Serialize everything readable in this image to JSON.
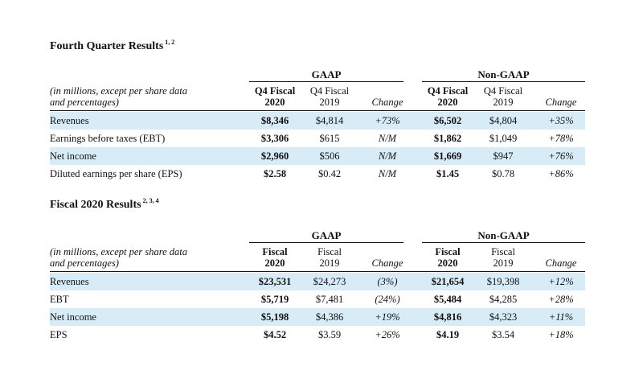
{
  "q4": {
    "title": "Fourth Quarter Results",
    "footnote": "1, 2",
    "gaap_label": "GAAP",
    "nongaap_label": "Non-GAAP",
    "desc_line1": "(in millions, except per share data",
    "desc_line2": "and percentages)",
    "col_current_l1": "Q4 Fiscal",
    "col_current_l2": "2020",
    "col_prior_l1": "Q4 Fiscal",
    "col_prior_l2": "2019",
    "col_change": "Change",
    "rows": [
      {
        "label": "Revenues",
        "gaap_cur": "$8,346",
        "gaap_prior": "$4,814",
        "gaap_chg": "+73%",
        "ng_cur": "$6,502",
        "ng_prior": "$4,804",
        "ng_chg": "+35%"
      },
      {
        "label": "Earnings before taxes (EBT)",
        "gaap_cur": "$3,306",
        "gaap_prior": "$615",
        "gaap_chg": "N/M",
        "ng_cur": "$1,862",
        "ng_prior": "$1,049",
        "ng_chg": "+78%"
      },
      {
        "label": "Net income",
        "gaap_cur": "$2,960",
        "gaap_prior": "$506",
        "gaap_chg": "N/M",
        "ng_cur": "$1,669",
        "ng_prior": "$947",
        "ng_chg": "+76%"
      },
      {
        "label": "Diluted earnings per share (EPS)",
        "gaap_cur": "$2.58",
        "gaap_prior": "$0.42",
        "gaap_chg": "N/M",
        "ng_cur": "$1.45",
        "ng_prior": "$0.78",
        "ng_chg": "+86%"
      }
    ]
  },
  "fy": {
    "title": "Fiscal 2020 Results",
    "footnote": "2, 3, 4",
    "gaap_label": "GAAP",
    "nongaap_label": "Non-GAAP",
    "desc_line1": "(in millions, except per share data",
    "desc_line2": "and percentages)",
    "col_current_l1": "Fiscal",
    "col_current_l2": "2020",
    "col_prior_l1": "Fiscal",
    "col_prior_l2": "2019",
    "col_change": "Change",
    "rows": [
      {
        "label": "Revenues",
        "gaap_cur": "$23,531",
        "gaap_prior": "$24,273",
        "gaap_chg": "(3%)",
        "ng_cur": "$21,654",
        "ng_prior": "$19,398",
        "ng_chg": "+12%"
      },
      {
        "label": "EBT",
        "gaap_cur": "$5,719",
        "gaap_prior": "$7,481",
        "gaap_chg": "(24%)",
        "ng_cur": "$5,484",
        "ng_prior": "$4,285",
        "ng_chg": "+28%"
      },
      {
        "label": "Net income",
        "gaap_cur": "$5,198",
        "gaap_prior": "$4,386",
        "gaap_chg": "+19%",
        "ng_cur": "$4,816",
        "ng_prior": "$4,323",
        "ng_chg": "+11%"
      },
      {
        "label": "EPS",
        "gaap_cur": "$4.52",
        "gaap_prior": "$3.59",
        "gaap_chg": "+26%",
        "ng_cur": "$4.19",
        "ng_prior": "$3.54",
        "ng_chg": "+18%"
      }
    ]
  },
  "colors": {
    "row_shade": "#d8ecf7",
    "text": "#111111"
  }
}
